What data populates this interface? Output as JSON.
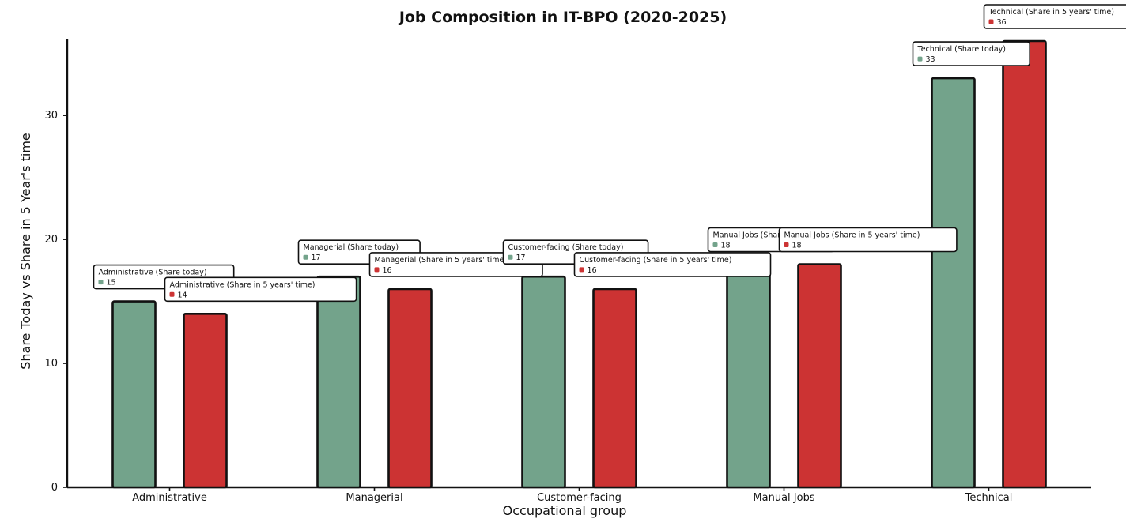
{
  "chart_data": {
    "type": "bar",
    "title": "Job Composition in IT-BPO (2020-2025)",
    "xlabel": "Occupational group",
    "ylabel": "Share Today vs Share in 5 Year's time",
    "categories": [
      "Administrative",
      "Managerial",
      "Customer-facing",
      "Manual Jobs",
      "Technical"
    ],
    "series": [
      {
        "name": "Share today",
        "color": "#73a38b",
        "values": [
          15,
          17,
          17,
          18,
          33
        ]
      },
      {
        "name": "Share in 5 years' time",
        "color": "#cc3333",
        "values": [
          14,
          16,
          16,
          18,
          36
        ]
      }
    ],
    "annotations": [
      [
        {
          "label": "Administrative (Share today)",
          "value": "15"
        },
        {
          "label": "Administrative (Share in 5 years' time)",
          "value": "14"
        }
      ],
      [
        {
          "label": "Managerial (Share today)",
          "value": "17"
        },
        {
          "label": "Managerial (Share in 5 years' time)",
          "value": "16"
        }
      ],
      [
        {
          "label": "Customer-facing (Share today)",
          "value": "17"
        },
        {
          "label": "Customer-facing (Share in 5 years' time)",
          "value": "16"
        }
      ],
      [
        {
          "label": "Manual Jobs (Share today)",
          "value": "18"
        },
        {
          "label": "Manual Jobs (Share in 5 years' time)",
          "value": "18"
        }
      ],
      [
        {
          "label": "Technical (Share today)",
          "value": "33"
        },
        {
          "label": "Technical (Share in 5 years' time)",
          "value": "36"
        }
      ]
    ],
    "yticks": [
      0,
      10,
      20,
      30
    ],
    "ylim": [
      0,
      36
    ],
    "grid": false,
    "legend": "none"
  }
}
